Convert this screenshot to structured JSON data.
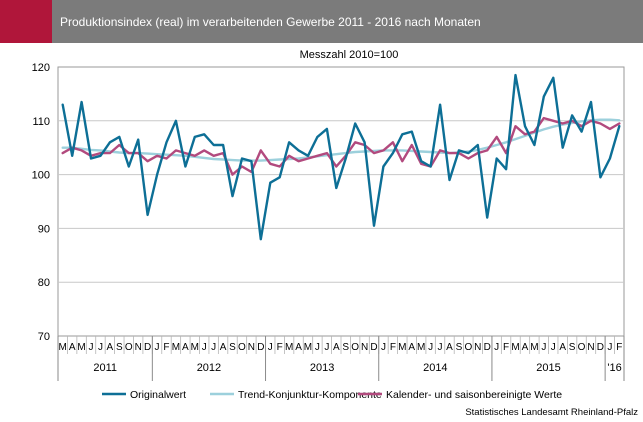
{
  "header": {
    "title": "Produktionsindex (real) im verarbeitenden Gewerbe 2011 - 2016 nach Monaten",
    "accent_color": "#b0163a",
    "bar_color": "#7b7b7b"
  },
  "chart_data": {
    "type": "line",
    "subtitle": "Messzahl 2010=100",
    "source": "Statistisches Landesamt Rheinland-Pfalz",
    "ylim": [
      70,
      120
    ],
    "yticks": [
      70,
      80,
      90,
      100,
      110,
      120
    ],
    "grid": true,
    "legend_position": "bottom",
    "months": [
      "M",
      "A",
      "M",
      "J",
      "J",
      "A",
      "S",
      "O",
      "N",
      "D",
      "J",
      "F",
      "M",
      "A",
      "M",
      "J",
      "J",
      "A",
      "S",
      "O",
      "N",
      "D",
      "J",
      "F",
      "M",
      "A",
      "M",
      "J",
      "J",
      "A",
      "S",
      "O",
      "N",
      "D",
      "J",
      "F",
      "M",
      "A",
      "M",
      "J",
      "J",
      "A",
      "S",
      "O",
      "N",
      "D",
      "J",
      "F",
      "M",
      "A",
      "M",
      "J",
      "J",
      "A",
      "S",
      "O",
      "N",
      "D",
      "J",
      "F"
    ],
    "years": [
      {
        "label": "2011",
        "count": 10
      },
      {
        "label": "2012",
        "count": 12
      },
      {
        "label": "2013",
        "count": 12
      },
      {
        "label": "2014",
        "count": 12
      },
      {
        "label": "2015",
        "count": 12
      },
      {
        "label": "'16",
        "count": 2
      }
    ],
    "series": [
      {
        "name": "Originalwert",
        "color": "#0d6f96",
        "values": [
          113,
          103.5,
          113.5,
          103,
          103.5,
          106,
          107,
          101.5,
          106.5,
          92.5,
          100,
          106,
          110,
          101.5,
          107,
          107.5,
          105.5,
          105.5,
          96,
          103,
          102.5,
          88,
          98.5,
          99.5,
          106,
          104.5,
          103.5,
          107,
          108.5,
          97.5,
          103,
          109.5,
          106,
          90.5,
          101.5,
          104,
          107.5,
          108,
          102.5,
          101.5,
          113,
          99,
          104.5,
          104,
          105.5,
          92,
          103,
          101,
          118.5,
          109,
          105.5,
          114.5,
          118,
          105,
          111,
          108,
          113.5,
          99.5,
          103,
          109
        ]
      },
      {
        "name": "Trend-Konjunktur-Komponente",
        "color": "#9cd0dc",
        "values": [
          105,
          105,
          104.8,
          104.6,
          104.5,
          104.3,
          104.1,
          104,
          104,
          103.9,
          103.8,
          103.7,
          103.6,
          103.5,
          103.3,
          103.1,
          102.9,
          102.8,
          102.7,
          102.6,
          102.6,
          102.6,
          102.7,
          102.8,
          102.9,
          103,
          103.2,
          103.4,
          103.6,
          103.8,
          104,
          104.2,
          104.3,
          104.4,
          104.5,
          104.5,
          104.5,
          104.4,
          104.3,
          104.2,
          104.1,
          104,
          104.1,
          104.3,
          104.6,
          105,
          105.5,
          106,
          106.6,
          107.2,
          107.8,
          108.4,
          108.9,
          109.3,
          109.6,
          109.9,
          110.1,
          110.2,
          110.2,
          110.1
        ]
      },
      {
        "name": "Kalender- und saisonbereinigte Werte",
        "color": "#b24a7e",
        "values": [
          104,
          105,
          104.5,
          103.5,
          104,
          104,
          105.5,
          104,
          104,
          102.5,
          103.5,
          103,
          104.5,
          104,
          103.5,
          104.5,
          103.5,
          104,
          100,
          101.5,
          100.5,
          104.5,
          102,
          101.5,
          103.5,
          102.5,
          103,
          103.5,
          104,
          101.5,
          103.5,
          106,
          105.5,
          104,
          104.5,
          106,
          102.5,
          105.5,
          102,
          101.5,
          104.5,
          104,
          104,
          103,
          104,
          104.5,
          107,
          104,
          109,
          107.5,
          108,
          110.5,
          110,
          109.5,
          110,
          109,
          110,
          109.5,
          108.5,
          109.5
        ]
      }
    ]
  }
}
